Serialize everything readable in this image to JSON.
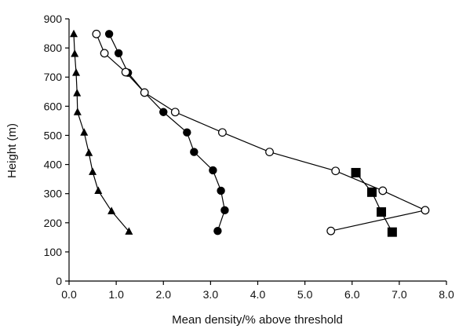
{
  "chart_data": {
    "type": "line",
    "xlabel": "Mean density/% above threshold",
    "ylabel": "Height (m)",
    "xlim": [
      0,
      8
    ],
    "ylim": [
      0,
      900
    ],
    "x_ticks": [
      "0.0",
      "1.0",
      "2.0",
      "3.0",
      "4.0",
      "5.0",
      "6.0",
      "7.0",
      "8.0"
    ],
    "y_ticks": [
      "0",
      "100",
      "200",
      "300",
      "400",
      "500",
      "600",
      "700",
      "800",
      "900"
    ],
    "grid": false,
    "series": [
      {
        "marker": "filled-triangle",
        "color": "#000000",
        "points": [
          {
            "x": 1.27,
            "y": 170
          },
          {
            "x": 0.9,
            "y": 240
          },
          {
            "x": 0.62,
            "y": 310
          },
          {
            "x": 0.5,
            "y": 375
          },
          {
            "x": 0.42,
            "y": 440
          },
          {
            "x": 0.32,
            "y": 510
          },
          {
            "x": 0.18,
            "y": 580
          },
          {
            "x": 0.17,
            "y": 645
          },
          {
            "x": 0.15,
            "y": 715
          },
          {
            "x": 0.12,
            "y": 780
          },
          {
            "x": 0.1,
            "y": 848
          }
        ]
      },
      {
        "marker": "filled-circle",
        "color": "#000000",
        "points": [
          {
            "x": 3.15,
            "y": 172
          },
          {
            "x": 3.3,
            "y": 243
          },
          {
            "x": 3.22,
            "y": 310
          },
          {
            "x": 3.05,
            "y": 380
          },
          {
            "x": 2.65,
            "y": 443
          },
          {
            "x": 2.5,
            "y": 510
          },
          {
            "x": 2.0,
            "y": 580
          },
          {
            "x": 1.6,
            "y": 647
          },
          {
            "x": 1.25,
            "y": 715
          },
          {
            "x": 1.05,
            "y": 782
          },
          {
            "x": 0.85,
            "y": 848
          }
        ]
      },
      {
        "marker": "open-circle",
        "color": "#000000",
        "points": [
          {
            "x": 5.55,
            "y": 172
          },
          {
            "x": 7.55,
            "y": 243
          },
          {
            "x": 6.65,
            "y": 310
          },
          {
            "x": 5.65,
            "y": 378
          },
          {
            "x": 4.25,
            "y": 443
          },
          {
            "x": 3.25,
            "y": 510
          },
          {
            "x": 2.25,
            "y": 580
          },
          {
            "x": 1.6,
            "y": 647
          },
          {
            "x": 1.2,
            "y": 717
          },
          {
            "x": 0.75,
            "y": 782
          },
          {
            "x": 0.58,
            "y": 848
          }
        ]
      },
      {
        "marker": "filled-square",
        "color": "#000000",
        "points": [
          {
            "x": 6.85,
            "y": 168
          },
          {
            "x": 6.62,
            "y": 237
          },
          {
            "x": 6.42,
            "y": 305
          },
          {
            "x": 6.08,
            "y": 372
          }
        ]
      }
    ]
  }
}
